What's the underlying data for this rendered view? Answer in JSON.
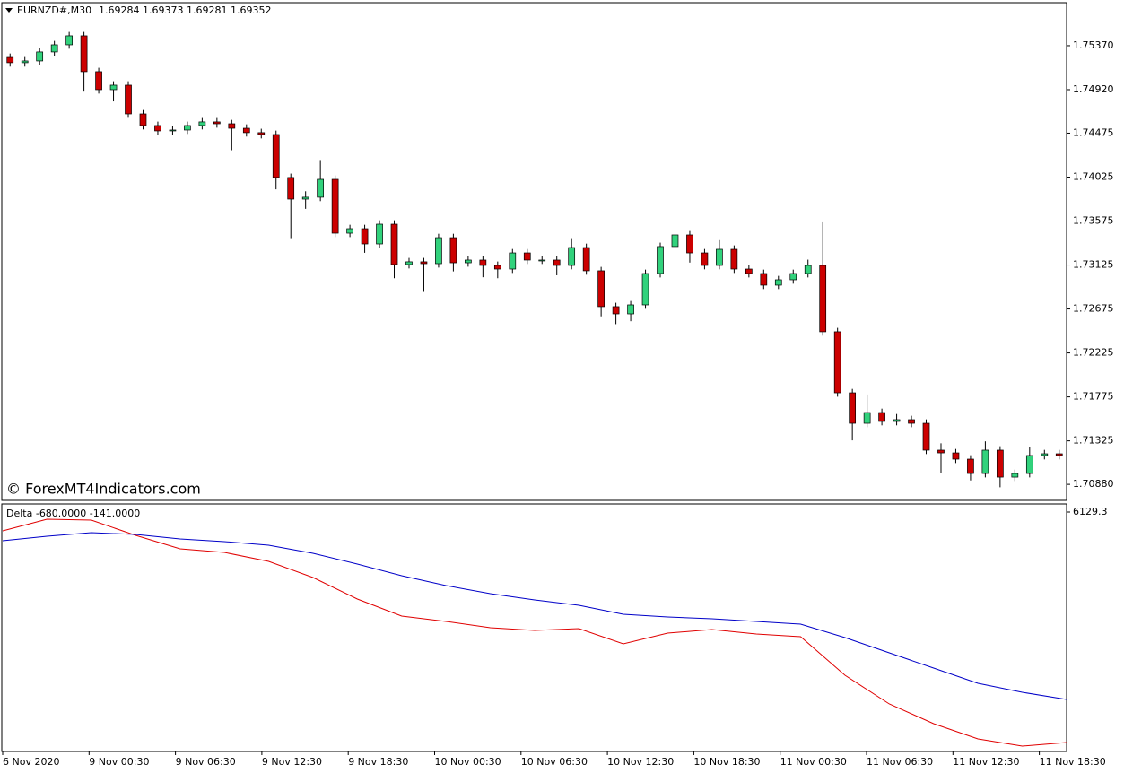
{
  "chart_data": [
    {
      "type": "candlestick",
      "title": "EURNZD#,M30",
      "ohlc_text": "1.69284 1.69373 1.69281 1.69352",
      "annotation": "© ForexMT4Indicators.com",
      "up_color": "#31d27c",
      "down_color": "#cc0000",
      "outline_color": "#000000",
      "open": [
        1.7525,
        1.75196,
        1.75214,
        1.75306,
        1.75379,
        1.75471,
        1.75104,
        1.7492,
        1.74966,
        1.74672,
        1.74553,
        1.74498,
        1.74507,
        1.74553,
        1.7459,
        1.74571,
        1.74525,
        1.7448,
        1.74461,
        1.74021,
        1.738,
        1.73819,
        1.74002,
        1.73451,
        1.73497,
        1.73341,
        1.73543,
        1.7313,
        1.73158,
        1.73139,
        1.73405,
        1.73148,
        1.73176,
        1.73121,
        1.73084,
        1.73249,
        1.73176,
        1.73176,
        1.73121,
        1.73304,
        1.73066,
        1.72699,
        1.72625,
        1.72717,
        1.73038,
        1.73314,
        1.73433,
        1.73249,
        1.73121,
        1.73286,
        1.73084,
        1.73038,
        1.72919,
        1.72974,
        1.73038,
        1.73121,
        1.72442,
        1.71817,
        1.71505,
        1.71615,
        1.71524,
        1.71542,
        1.71505,
        1.7123,
        1.71202,
        1.71138,
        1.70991,
        1.7123,
        1.70954,
        1.70991,
        1.71175,
        1.71193
      ],
      "high": [
        1.7529,
        1.75254,
        1.75346,
        1.75419,
        1.75511,
        1.75511,
        1.75144,
        1.75006,
        1.75006,
        1.74712,
        1.74593,
        1.74547,
        1.74593,
        1.7463,
        1.7463,
        1.74611,
        1.74565,
        1.7452,
        1.74501,
        1.74061,
        1.7388,
        1.742,
        1.74042,
        1.73537,
        1.73537,
        1.73583,
        1.73583,
        1.73198,
        1.73198,
        1.73445,
        1.73445,
        1.73216,
        1.73216,
        1.73161,
        1.73289,
        1.73289,
        1.73216,
        1.73216,
        1.734,
        1.73344,
        1.73106,
        1.72739,
        1.72757,
        1.73078,
        1.73354,
        1.7365,
        1.73473,
        1.73289,
        1.7338,
        1.73326,
        1.73124,
        1.73078,
        1.73014,
        1.73078,
        1.7318,
        1.73562,
        1.72482,
        1.71857,
        1.718,
        1.71655,
        1.716,
        1.71582,
        1.71545,
        1.713,
        1.71242,
        1.71178,
        1.7132,
        1.7127,
        1.71031,
        1.7126,
        1.71233,
        1.71233
      ],
      "low": [
        1.75156,
        1.75156,
        1.75174,
        1.75266,
        1.75339,
        1.749,
        1.7488,
        1.748,
        1.74632,
        1.74513,
        1.74458,
        1.74458,
        1.74467,
        1.74513,
        1.74531,
        1.743,
        1.7444,
        1.74421,
        1.739,
        1.734,
        1.737,
        1.73779,
        1.73411,
        1.73411,
        1.7325,
        1.73301,
        1.7299,
        1.7309,
        1.7285,
        1.73099,
        1.7306,
        1.73108,
        1.73,
        1.7299,
        1.73044,
        1.73136,
        1.73136,
        1.7302,
        1.73081,
        1.73026,
        1.726,
        1.7252,
        1.7255,
        1.72677,
        1.72998,
        1.73274,
        1.7315,
        1.73081,
        1.73081,
        1.73044,
        1.72998,
        1.72879,
        1.72879,
        1.72934,
        1.72998,
        1.72402,
        1.71777,
        1.7133,
        1.71465,
        1.71484,
        1.71484,
        1.71465,
        1.7119,
        1.71,
        1.71098,
        1.7092,
        1.70951,
        1.7085,
        1.70914,
        1.70951,
        1.71135,
        1.71135
      ],
      "close": [
        1.75196,
        1.75214,
        1.75306,
        1.75379,
        1.75471,
        1.75104,
        1.7492,
        1.74966,
        1.74672,
        1.74553,
        1.74498,
        1.74507,
        1.74553,
        1.7459,
        1.74571,
        1.74525,
        1.7448,
        1.74461,
        1.74021,
        1.738,
        1.73819,
        1.74002,
        1.73451,
        1.73497,
        1.73341,
        1.73543,
        1.7313,
        1.73158,
        1.73139,
        1.73405,
        1.73148,
        1.73176,
        1.73121,
        1.73084,
        1.73249,
        1.73176,
        1.73176,
        1.73121,
        1.73304,
        1.73066,
        1.72699,
        1.72625,
        1.72717,
        1.73038,
        1.73314,
        1.73433,
        1.73249,
        1.73121,
        1.73286,
        1.73084,
        1.73038,
        1.72919,
        1.72974,
        1.73038,
        1.73121,
        1.72442,
        1.71817,
        1.71505,
        1.71615,
        1.71524,
        1.71542,
        1.71505,
        1.7123,
        1.71202,
        1.71138,
        1.70991,
        1.7123,
        1.70954,
        1.70991,
        1.71175,
        1.71193,
        1.71175
      ],
      "ylim": [
        1.70725,
        1.75801
      ],
      "yticks": [
        {
          "value": 1.7537,
          "label": "1.75370"
        },
        {
          "value": 1.7492,
          "label": "1.74920"
        },
        1.74475,
        1.74025,
        1.73575,
        1.73125,
        1.72675,
        1.72225,
        1.71775,
        1.71325,
        {
          "value": 1.7088,
          "label": "1.70880"
        }
      ],
      "time_labels": [
        "6 Nov 2020",
        "9 Nov 00:30",
        "9 Nov 06:30",
        "9 Nov 12:30",
        "9 Nov 18:30",
        "10 Nov 00:30",
        "10 Nov 06:30",
        "10 Nov 12:30",
        "10 Nov 18:30",
        "11 Nov 00:30",
        "11 Nov 06:30",
        "11 Nov 12:30",
        "11 Nov 18:30"
      ]
    },
    {
      "type": "line",
      "title": "Delta -680.0000 -141.0000",
      "series": [
        {
          "color": "#e00000",
          "values": [
            5647,
            5946,
            5923,
            5532,
            5188,
            5096,
            4867,
            4453,
            3903,
            3466,
            3329,
            3168,
            3099,
            3145,
            2755,
            3030,
            3122,
            3007,
            2938,
            1951,
            1217,
            712,
            321,
            138,
            230
          ]
        },
        {
          "color": "#0000c8",
          "values": [
            5395,
            5509,
            5601,
            5555,
            5441,
            5372,
            5280,
            5073,
            4798,
            4499,
            4247,
            4040,
            3880,
            3742,
            3512,
            3443,
            3397,
            3329,
            3260,
            2915,
            2525,
            2135,
            1745,
            1515,
            1331
          ]
        }
      ],
      "ylim": [
        0,
        6129.3
      ],
      "yticks": [
        6129.3
      ]
    }
  ]
}
